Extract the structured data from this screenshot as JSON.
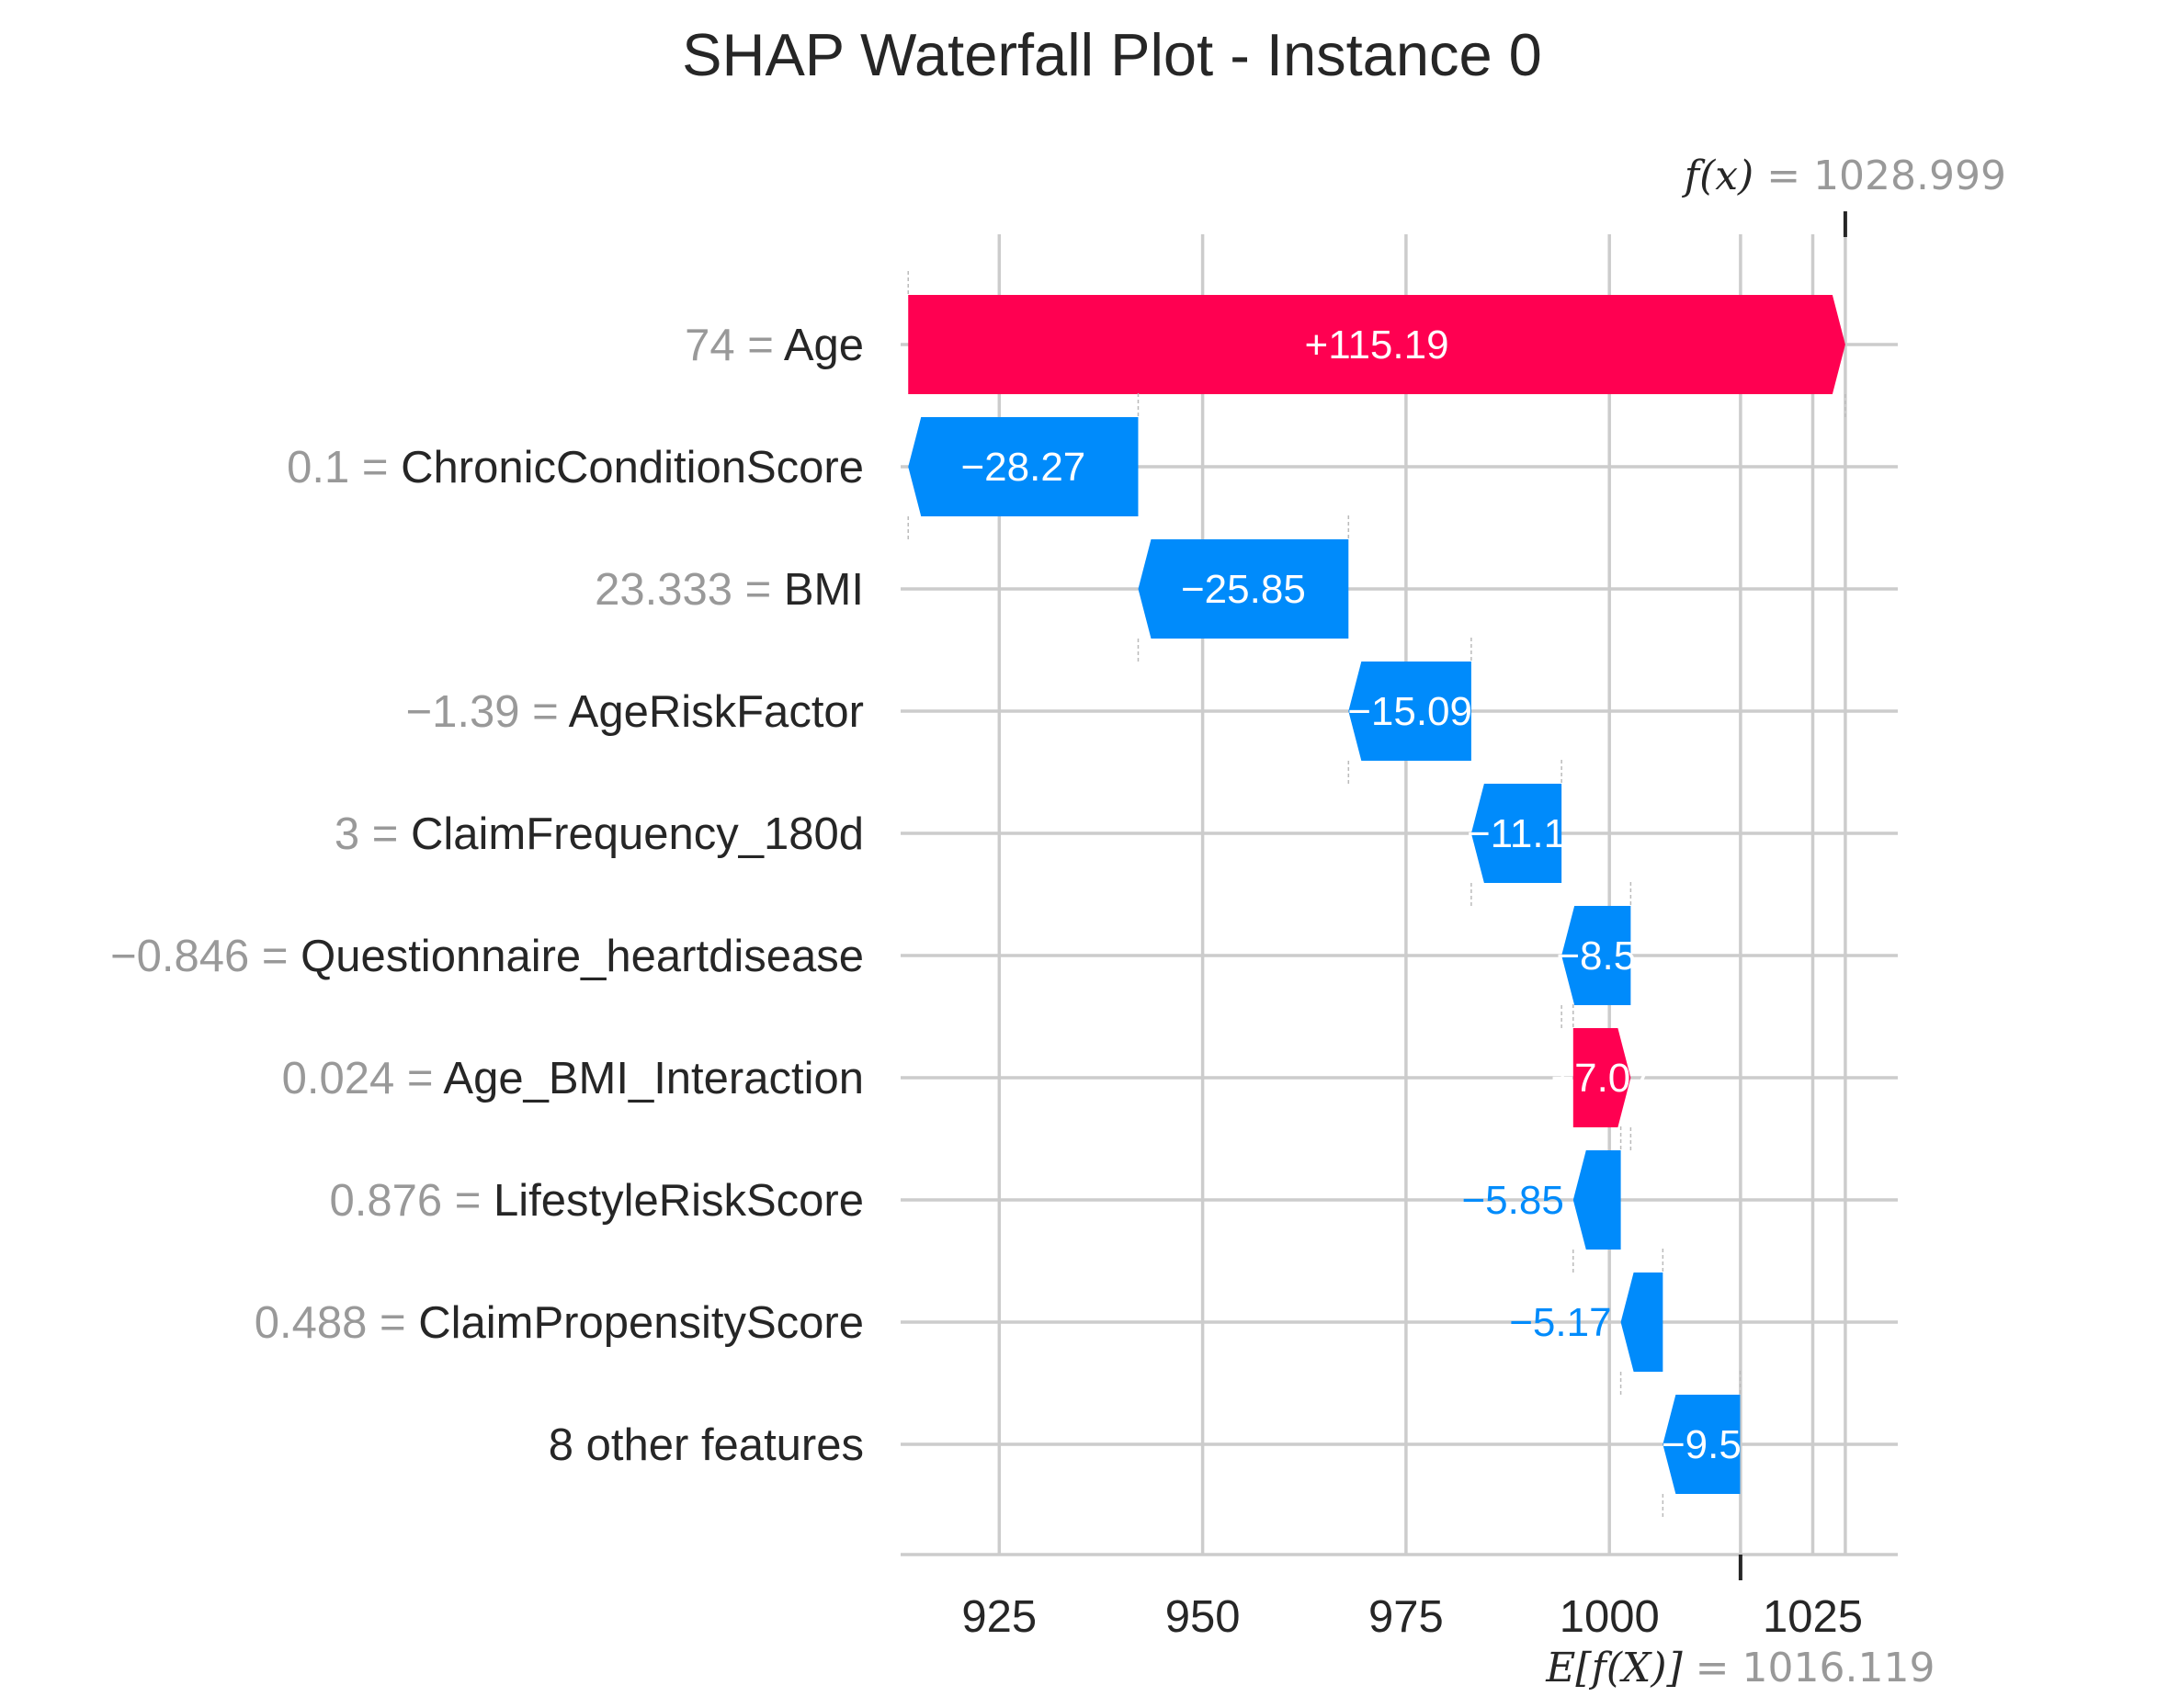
{
  "chart_data": {
    "type": "waterfall",
    "title": "SHAP Waterfall Plot - Instance 0",
    "base_value": 1016.119,
    "base_label": "E[f(X)]",
    "base_value_text": "1016.119",
    "output_value": 1028.999,
    "output_label": "f(x)",
    "output_value_text": "1028.999",
    "xlim": [
      912,
      1035
    ],
    "xticks": [
      925,
      950,
      975,
      1000,
      1025
    ],
    "xtick_labels": [
      "925",
      "950",
      "975",
      "1000",
      "1025"
    ],
    "grid": true,
    "colors": {
      "positive": "#ff0051",
      "negative": "#008bfb",
      "grid": "#cccccc",
      "feature_value": "#999999"
    },
    "features": [
      {
        "value_text": "74",
        "name": "Age",
        "shap": 115.19,
        "label": "+115.19"
      },
      {
        "value_text": "0.1",
        "name": "ChronicConditionScore",
        "shap": -28.27,
        "label": "−28.27"
      },
      {
        "value_text": "23.333",
        "name": "BMI",
        "shap": -25.85,
        "label": "−25.85"
      },
      {
        "value_text": "−1.39",
        "name": "AgeRiskFactor",
        "shap": -15.09,
        "label": "−15.09"
      },
      {
        "value_text": "3",
        "name": "ClaimFrequency_180d",
        "shap": -11.1,
        "label": "−11.1"
      },
      {
        "value_text": "−0.846",
        "name": "Questionnaire_heartdisease",
        "shap": -8.5,
        "label": "−8.5"
      },
      {
        "value_text": "0.024",
        "name": "Age_BMI_Interaction",
        "shap": 7.07,
        "label": "+7.07"
      },
      {
        "value_text": "0.876",
        "name": "LifestyleRiskScore",
        "shap": -5.85,
        "label": "−5.85"
      },
      {
        "value_text": "0.488",
        "name": "ClaimPropensityScore",
        "shap": -5.17,
        "label": "−5.17"
      },
      {
        "value_text": "",
        "name": "8 other features",
        "shap": -9.5,
        "label": "−9.5"
      }
    ]
  }
}
